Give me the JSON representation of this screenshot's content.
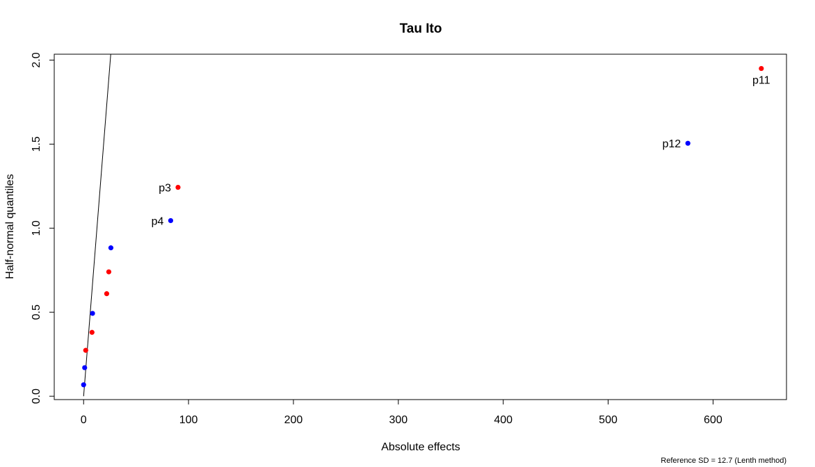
{
  "chart_data": {
    "type": "scatter",
    "title": "Tau Ito",
    "xlabel": "Absolute effects",
    "ylabel": "Half-normal quantiles",
    "footnote": "Reference SD = 12.7 (Lenth method)",
    "xlim": [
      -28,
      670
    ],
    "ylim": [
      -0.02,
      2.035
    ],
    "xticks": [
      0,
      100,
      200,
      300,
      400,
      500,
      600
    ],
    "yticks": [
      0.0,
      0.5,
      1.0,
      1.5,
      2.0
    ],
    "xtick_labels": [
      "0",
      "100",
      "200",
      "300",
      "400",
      "500",
      "600"
    ],
    "ytick_labels": [
      "0.0",
      "0.5",
      "1.0",
      "1.5",
      "2.0"
    ],
    "reference_line": {
      "slope": 0.0787,
      "intercept": 0
    },
    "colors": {
      "red": "#ff0000",
      "blue": "#0000ff",
      "line": "#000000"
    },
    "points": [
      {
        "x": 0,
        "y": 0.068,
        "color": "blue",
        "label": ""
      },
      {
        "x": 1,
        "y": 0.17,
        "color": "blue",
        "label": ""
      },
      {
        "x": 2,
        "y": 0.273,
        "color": "red",
        "label": ""
      },
      {
        "x": 8,
        "y": 0.38,
        "color": "red",
        "label": ""
      },
      {
        "x": 8.5,
        "y": 0.493,
        "color": "blue",
        "label": ""
      },
      {
        "x": 22,
        "y": 0.61,
        "color": "red",
        "label": ""
      },
      {
        "x": 24,
        "y": 0.74,
        "color": "red",
        "label": ""
      },
      {
        "x": 26,
        "y": 0.883,
        "color": "blue",
        "label": ""
      },
      {
        "x": 83,
        "y": 1.045,
        "color": "blue",
        "label": "p4",
        "label_pos": "left"
      },
      {
        "x": 90,
        "y": 1.243,
        "color": "red",
        "label": "p3",
        "label_pos": "left"
      },
      {
        "x": 576,
        "y": 1.505,
        "color": "blue",
        "label": "p12",
        "label_pos": "left"
      },
      {
        "x": 646,
        "y": 1.95,
        "color": "red",
        "label": "p11",
        "label_pos": "below"
      }
    ]
  }
}
